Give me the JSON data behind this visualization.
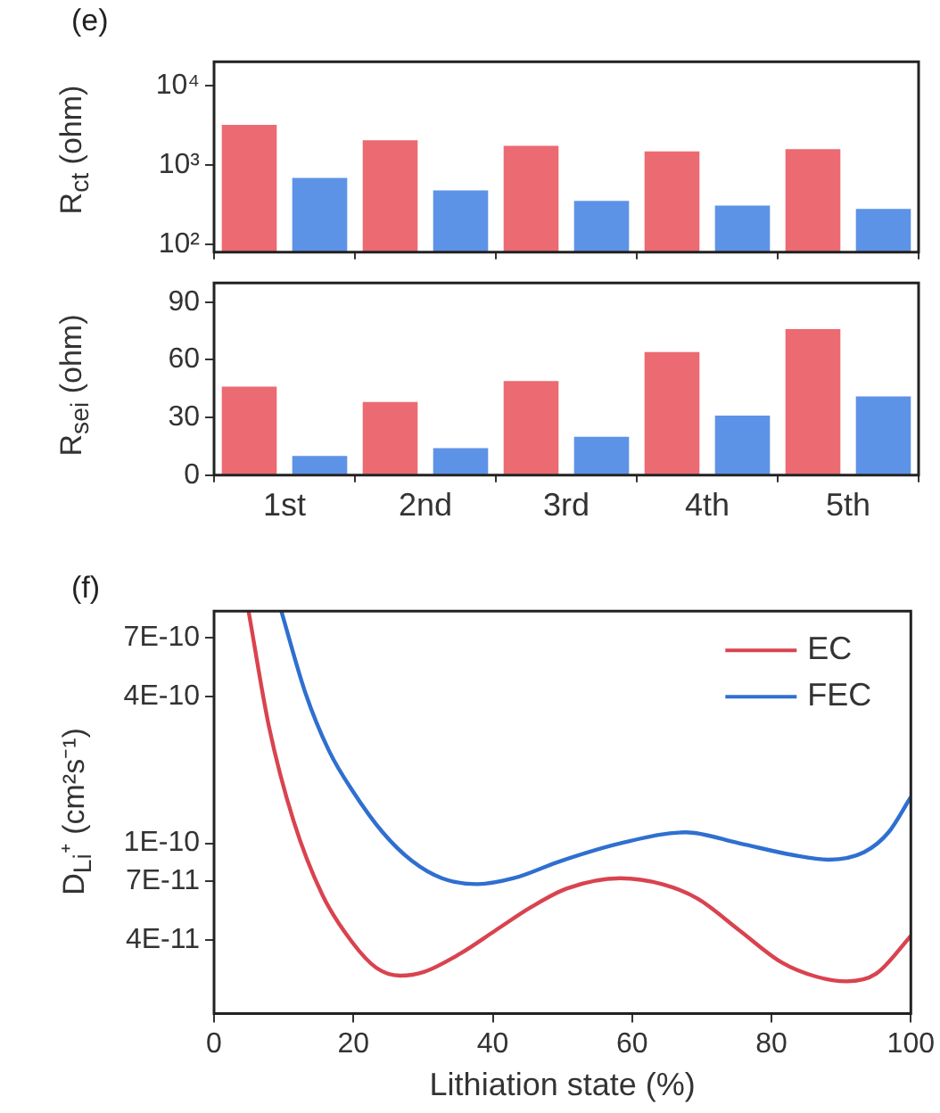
{
  "chart_data": [
    {
      "type": "bar",
      "annotations": [
        "(e)"
      ],
      "ylabel": "R$_{ct}$ (ohm)",
      "categories": [
        null,
        null,
        null,
        null,
        null
      ],
      "log": "y",
      "tick_labels": "y",
      "grid": false,
      "legend": false,
      "series": [
        {
          "color": "#ec6a72",
          "values": [
            3200,
            2050,
            1750,
            1490,
            1590
          ]
        },
        {
          "color": "#5d93e6",
          "values": [
            690,
            480,
            355,
            310,
            280
          ]
        }
      ],
      "ylim": [
        80,
        20000
      ],
      "yticks": [
        {
          "value": 100,
          "label": "10²"
        },
        {
          "value": 1000,
          "label": "10³"
        },
        {
          "value": 10000,
          "label": "10⁴"
        }
      ]
    },
    {
      "type": "bar",
      "ylabel": "R$_{sei}$ (ohm)",
      "categories": [
        "1st",
        "2nd",
        "3rd",
        "4th",
        "5th"
      ],
      "grid": false,
      "legend": false,
      "series": [
        {
          "color": "#ec6a72",
          "values": [
            46,
            38,
            49,
            64,
            76
          ]
        },
        {
          "color": "#5d93e6",
          "values": [
            10,
            14,
            20,
            31,
            41
          ]
        }
      ],
      "ylim": [
        0,
        100
      ],
      "yticks": [
        0,
        30,
        60,
        90
      ]
    },
    {
      "type": "line",
      "annotations": [
        "(f)"
      ],
      "xlabel": "Lithiation state (%)",
      "ylabel": "D$_{Li}$⁺ (cm²s⁻¹)",
      "log": "y",
      "grid": false,
      "legend": "top right",
      "marker": "none",
      "line_style": "solid",
      "series": [
        {
          "name": "EC",
          "color": "#d9434f",
          "x": [
            4.95,
            7.9,
            11.4,
            15.6,
            19.9,
            23.3,
            26.7,
            30.1,
            35.3,
            40.4,
            45.5,
            50.6,
            58.3,
            64.3,
            69.4,
            75.4,
            81.4,
            86.5,
            90.8,
            95.0,
            100
          ],
          "values": [
            9e-10,
            3e-10,
            1.24e-10,
            6.1e-11,
            3.9e-11,
            3.08e-11,
            2.86e-11,
            2.96e-11,
            3.52e-11,
            4.39e-11,
            5.47e-11,
            6.52e-11,
            7.19e-11,
            6.8e-11,
            5.93e-11,
            4.39e-11,
            3.25e-11,
            2.83e-11,
            2.71e-11,
            2.91e-11,
            4.16e-11
          ]
        },
        {
          "name": "FEC",
          "color": "#2f6fd0",
          "x": [
            9.65,
            13.1,
            16.5,
            19.9,
            24.2,
            28.4,
            32.7,
            37.8,
            43.0,
            49.8,
            58.3,
            67.7,
            75.4,
            83.1,
            88.2,
            93.3,
            96.8,
            100
          ],
          "values": [
            9e-10,
            4.16e-10,
            2.4e-10,
            1.64e-10,
            1.11e-10,
            8.47e-11,
            7.19e-11,
            6.8e-11,
            7.19e-11,
            8.47e-11,
            1e-10,
            1.11e-10,
            1e-10,
            8.95e-11,
            8.57e-11,
            9.2e-11,
            1.11e-10,
            1.55e-10
          ]
        }
      ],
      "xlim": [
        0,
        100
      ],
      "xticks": [
        0,
        20,
        40,
        60,
        80,
        100
      ],
      "ylim": [
        2e-11,
        9e-10
      ],
      "yticks": [
        {
          "value": 4e-11,
          "label": "4E-11"
        },
        {
          "value": 7e-11,
          "label": "7E-11"
        },
        {
          "value": 1e-10,
          "label": "1E-10"
        },
        {
          "value": 4e-10,
          "label": "4E-10"
        },
        {
          "value": 7e-10,
          "label": "7E-10"
        }
      ]
    }
  ]
}
